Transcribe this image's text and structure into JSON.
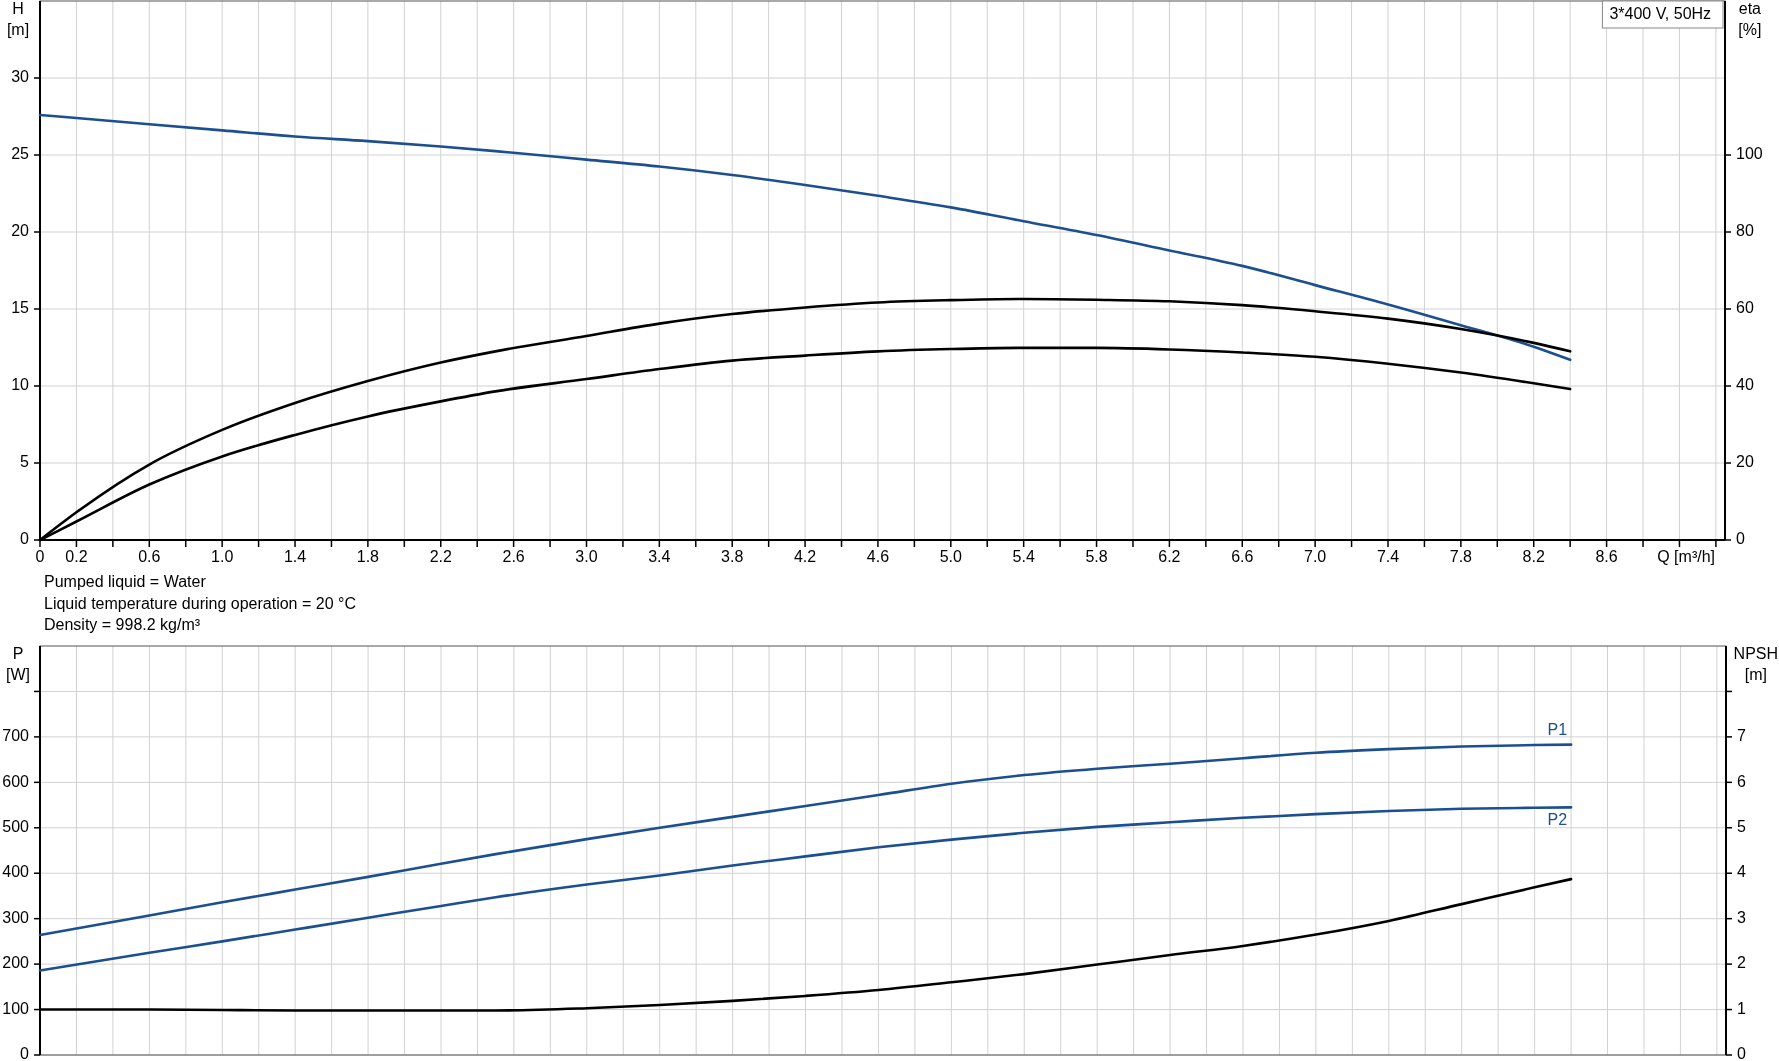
{
  "chart_data": [
    {
      "type": "line",
      "xlabel": "Q [m³/h]",
      "ylabel": "H [m]",
      "y2label": "eta [%]",
      "annotations": [
        "3*400 V, 50Hz",
        "Pumped liquid = Water",
        "Liquid temperature during operation = 20 °C",
        "Density = 998.2 kg/m³"
      ],
      "x": [
        0,
        0.2,
        0.6,
        1.0,
        1.4,
        1.8,
        2.2,
        2.5,
        3.0,
        3.4,
        3.8,
        4.2,
        4.6,
        5.0,
        5.4,
        5.8,
        6.2,
        6.6,
        7.0,
        7.4,
        7.8,
        8.2,
        8.4
      ],
      "xlim": [
        0,
        9.25
      ],
      "xticks": [
        0,
        0.2,
        {
          "value": 0.4,
          "label": null
        },
        0.6,
        {
          "value": 0.8,
          "label": null
        },
        {
          "value": 1,
          "label": "1.0"
        },
        {
          "value": 1.2,
          "label": null
        },
        1.4,
        {
          "value": 1.6,
          "label": null
        },
        1.8,
        {
          "value": 2,
          "label": null
        },
        2.2,
        {
          "value": 2.4,
          "label": null
        },
        2.6,
        {
          "value": 2.8,
          "label": null
        },
        {
          "value": 3,
          "label": "3.0"
        },
        {
          "value": 3.2,
          "label": null
        },
        3.4,
        {
          "value": 3.6,
          "label": null
        },
        3.8,
        {
          "value": 4,
          "label": null
        },
        4.2,
        {
          "value": 4.4,
          "label": null
        },
        4.6,
        {
          "value": 4.8,
          "label": null
        },
        {
          "value": 5,
          "label": "5.0"
        },
        {
          "value": 5.2,
          "label": null
        },
        5.4,
        {
          "value": 5.6,
          "label": null
        },
        5.8,
        {
          "value": 6,
          "label": null
        },
        6.2,
        {
          "value": 6.4,
          "label": null
        },
        6.6,
        {
          "value": 6.8,
          "label": null
        },
        {
          "value": 7,
          "label": "7.0"
        },
        {
          "value": 7.2,
          "label": null
        },
        7.4,
        {
          "value": 7.6,
          "label": null
        },
        7.8,
        {
          "value": 8,
          "label": null
        },
        8.2,
        {
          "value": 8.4,
          "label": null
        },
        8.6,
        {
          "value": 8.8,
          "label": null
        },
        {
          "value": 9,
          "label": null
        },
        {
          "value": 9.2,
          "label": null
        }
      ],
      "ylim": [
        0,
        35
      ],
      "yticks": [
        0,
        5,
        10,
        15,
        20,
        25,
        30
      ],
      "y2lim": [
        0,
        140
      ],
      "y2ticks": [
        0,
        20,
        40,
        60,
        80,
        100
      ],
      "grid": true,
      "series": [
        {
          "color": "#1b4f8f",
          "values": [
            27.6,
            27.4,
            27.0,
            26.6,
            26.2,
            25.9,
            25.55,
            25.25,
            24.7,
            24.25,
            23.7,
            23.05,
            22.35,
            21.6,
            20.7,
            19.8,
            18.8,
            17.8,
            16.55,
            15.3,
            13.95,
            12.55,
            11.7
          ]
        },
        {
          "color": "#000000",
          "axis": "y2",
          "values": [
            0,
            7.2,
            19.6,
            28.6,
            35.6,
            41.3,
            46.1,
            49.0,
            53.0,
            56.2,
            58.7,
            60.4,
            61.7,
            62.3,
            62.6,
            62.4,
            62.0,
            61.0,
            59.4,
            57.5,
            54.8,
            51.2,
            49.0
          ]
        },
        {
          "color": "#000000",
          "axis": "y2",
          "values": [
            0,
            4.8,
            14.4,
            21.7,
            27.3,
            32.1,
            36.0,
            38.6,
            41.8,
            44.4,
            46.6,
            47.9,
            49.0,
            49.6,
            49.9,
            49.9,
            49.5,
            48.7,
            47.6,
            45.8,
            43.5,
            40.7,
            39.2
          ]
        }
      ]
    },
    {
      "type": "line",
      "ylabel": "P [W]",
      "y2label": "NPSH [m]",
      "x": [
        0,
        0.6,
        1.0,
        1.4,
        1.8,
        2.2,
        2.5,
        3.0,
        3.4,
        3.8,
        4.2,
        4.6,
        5.0,
        5.4,
        5.8,
        6.2,
        6.6,
        7.0,
        7.4,
        7.8,
        8.2,
        8.4
      ],
      "xlim": [
        0,
        9.25
      ],
      "xticks": [
        {
          "value": 0,
          "label": null
        },
        {
          "value": 0.2,
          "label": null
        },
        {
          "value": 0.4,
          "label": null
        },
        {
          "value": 0.6,
          "label": null
        },
        {
          "value": 0.8,
          "label": null
        },
        {
          "value": 1,
          "label": null
        },
        {
          "value": 1.2,
          "label": null
        },
        {
          "value": 1.4,
          "label": null
        },
        {
          "value": 1.6,
          "label": null
        },
        {
          "value": 1.8,
          "label": null
        },
        {
          "value": 2,
          "label": null
        },
        {
          "value": 2.2,
          "label": null
        },
        {
          "value": 2.4,
          "label": null
        },
        {
          "value": 2.6,
          "label": null
        },
        {
          "value": 2.8,
          "label": null
        },
        {
          "value": 3,
          "label": null
        },
        {
          "value": 3.2,
          "label": null
        },
        {
          "value": 3.4,
          "label": null
        },
        {
          "value": 3.6,
          "label": null
        },
        {
          "value": 3.8,
          "label": null
        },
        {
          "value": 4,
          "label": null
        },
        {
          "value": 4.2,
          "label": null
        },
        {
          "value": 4.4,
          "label": null
        },
        {
          "value": 4.6,
          "label": null
        },
        {
          "value": 4.8,
          "label": null
        },
        {
          "value": 5,
          "label": null
        },
        {
          "value": 5.2,
          "label": null
        },
        {
          "value": 5.4,
          "label": null
        },
        {
          "value": 5.6,
          "label": null
        },
        {
          "value": 5.8,
          "label": null
        },
        {
          "value": 6,
          "label": null
        },
        {
          "value": 6.2,
          "label": null
        },
        {
          "value": 6.4,
          "label": null
        },
        {
          "value": 6.6,
          "label": null
        },
        {
          "value": 6.8,
          "label": null
        },
        {
          "value": 7,
          "label": null
        },
        {
          "value": 7.2,
          "label": null
        },
        {
          "value": 7.4,
          "label": null
        },
        {
          "value": 7.6,
          "label": null
        },
        {
          "value": 7.8,
          "label": null
        },
        {
          "value": 8,
          "label": null
        },
        {
          "value": 8.2,
          "label": null
        },
        {
          "value": 8.4,
          "label": null
        },
        {
          "value": 8.6,
          "label": null
        },
        {
          "value": 8.8,
          "label": null
        },
        {
          "value": 9,
          "label": null
        },
        {
          "value": 9.2,
          "label": null
        }
      ],
      "tick_labels": "y",
      "ylim": [
        0,
        900
      ],
      "yticks": [
        0,
        100,
        200,
        300,
        400,
        500,
        600,
        700,
        {
          "value": 800,
          "label": null
        }
      ],
      "y2lim": [
        0,
        9
      ],
      "y2ticks": [
        0,
        1,
        2,
        3,
        4,
        5,
        6,
        7,
        {
          "value": 8,
          "label": null
        }
      ],
      "grid": true,
      "series": [
        {
          "name": "P1",
          "color": "#1b4f8f",
          "values": [
            264,
            307,
            336,
            364,
            392,
            421,
            442,
            475,
            500,
            524,
            548,
            572,
            597,
            616,
            630,
            641,
            653,
            665,
            673,
            679,
            682,
            683
          ]
        },
        {
          "name": "P2",
          "color": "#1b4f8f",
          "values": [
            186,
            225,
            250,
            276,
            302,
            328,
            347,
            375,
            395,
            417,
            437,
            457,
            474,
            489,
            502,
            512,
            522,
            530,
            537,
            542,
            544,
            545
          ]
        },
        {
          "color": "#000000",
          "axis": "y2",
          "values": [
            1.0,
            1.0,
            0.99,
            0.98,
            0.98,
            0.98,
            0.98,
            1.03,
            1.1,
            1.19,
            1.3,
            1.43,
            1.6,
            1.78,
            1.99,
            2.2,
            2.4,
            2.65,
            2.95,
            3.32,
            3.69,
            3.87
          ]
        }
      ]
    }
  ]
}
